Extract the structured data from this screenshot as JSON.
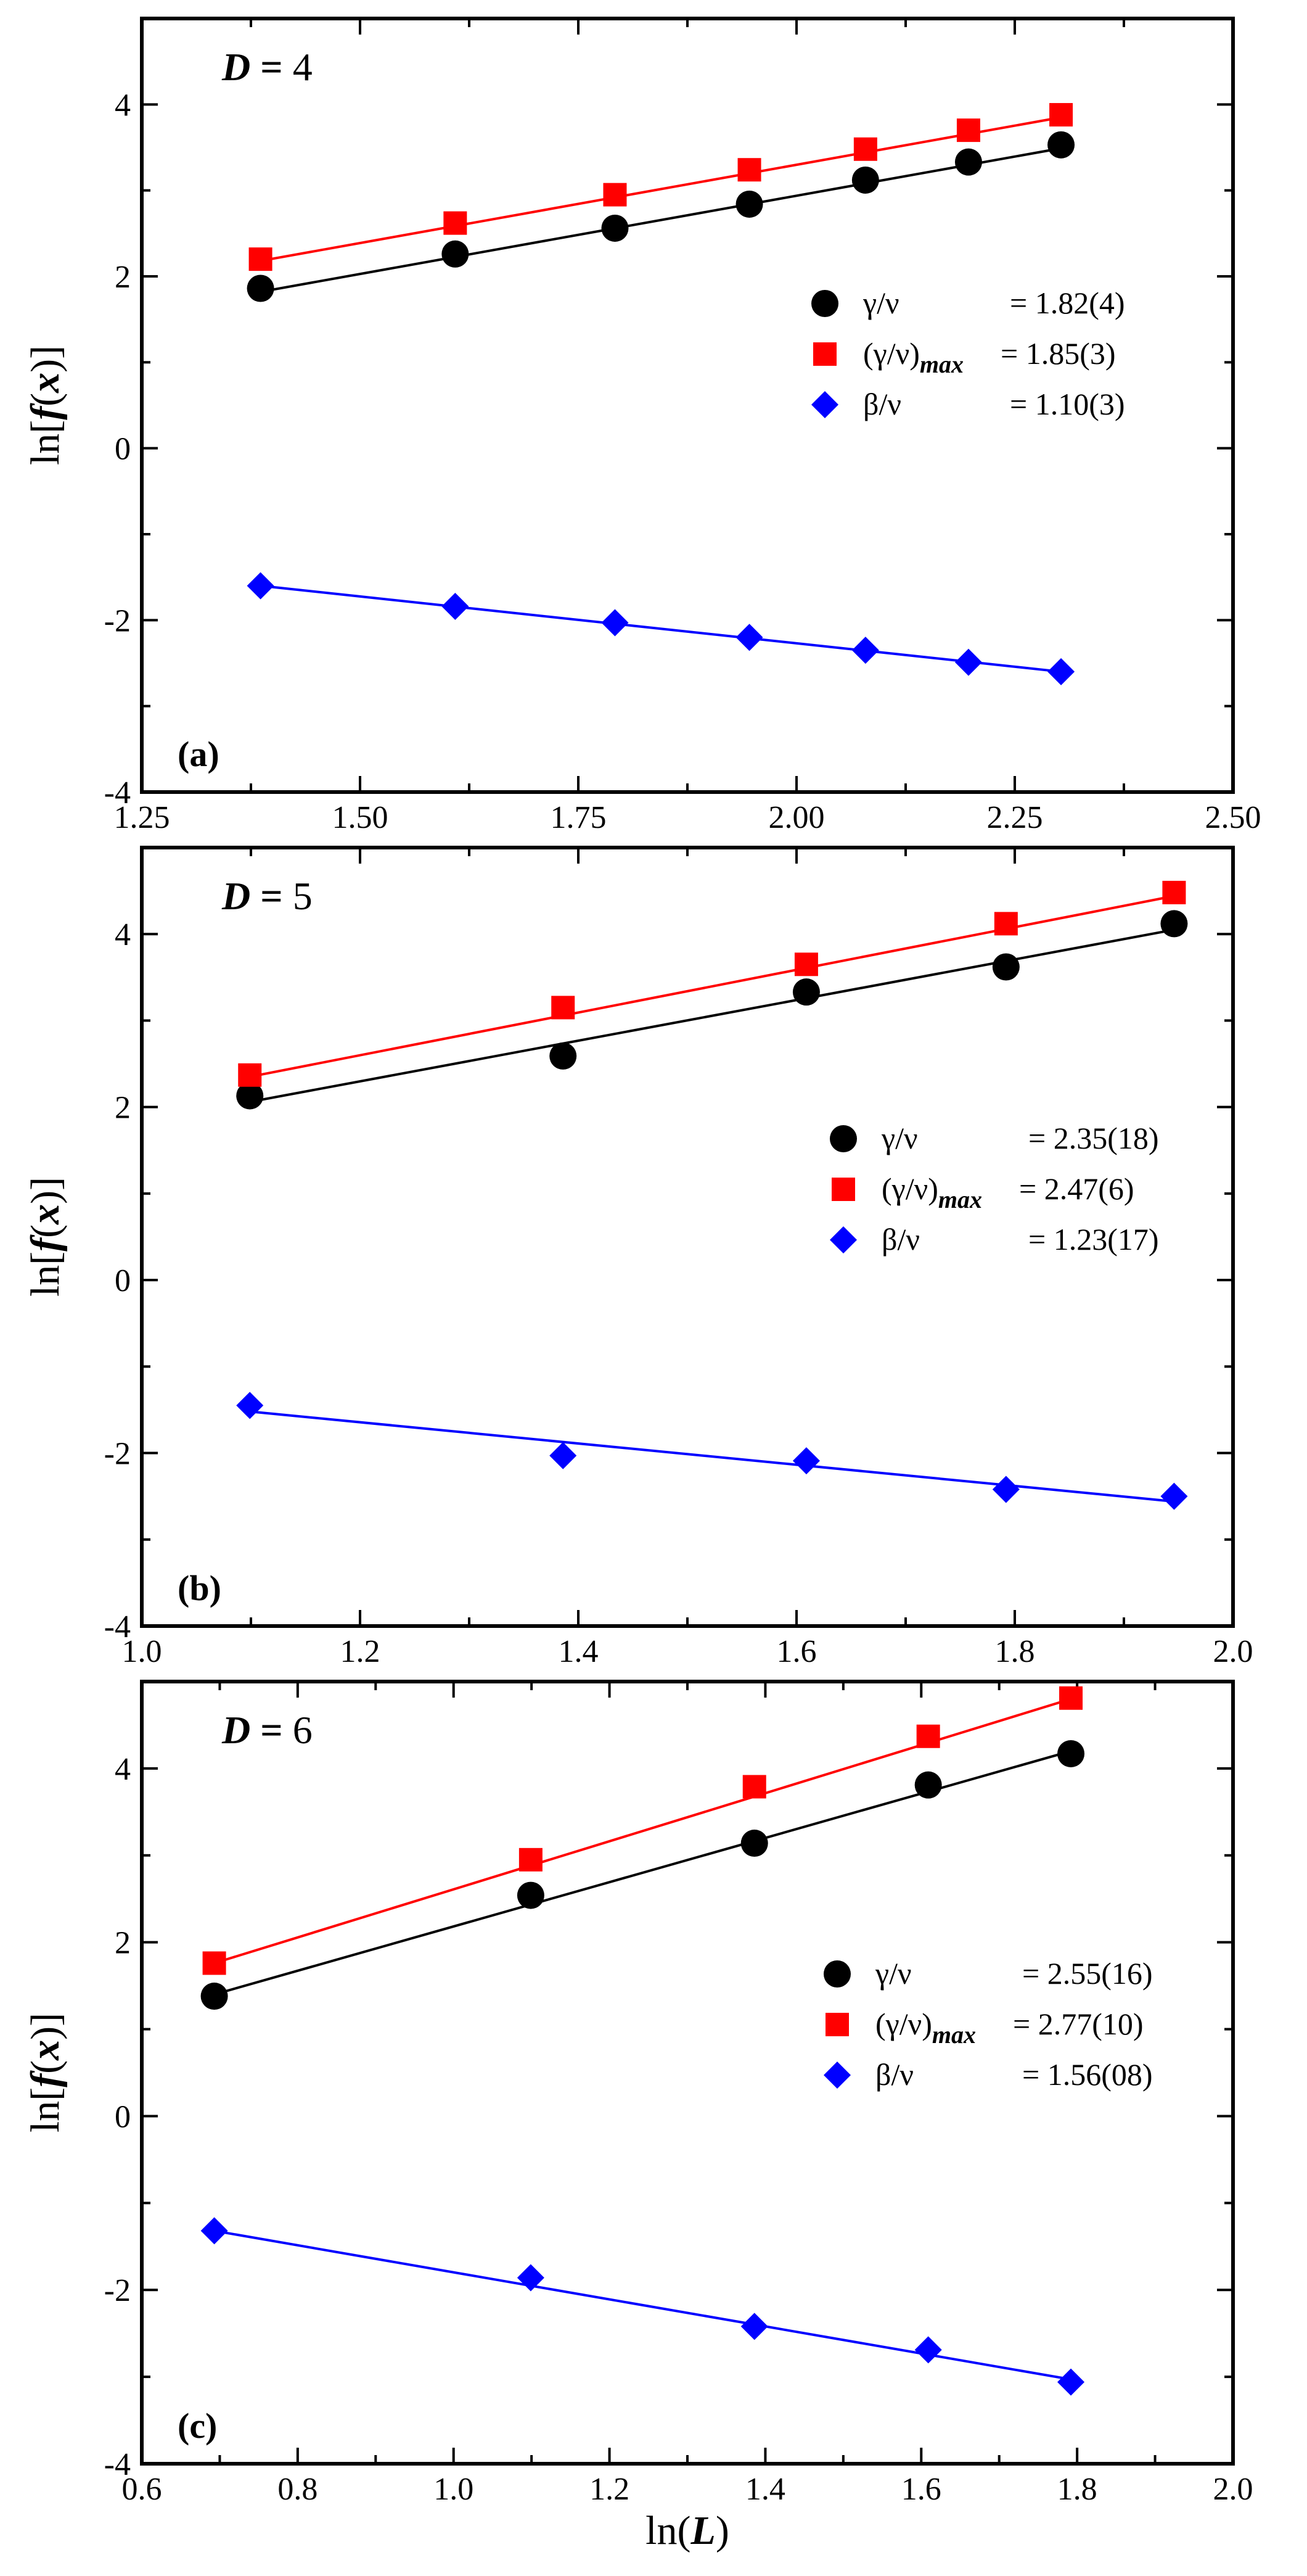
{
  "colors": {
    "gamma": "#000000",
    "gamma_max": "#ff0000",
    "beta": "#0000ff"
  },
  "chart_data": [
    {
      "type": "scatter",
      "panel_label": "(a)",
      "title": {
        "var": "D",
        "eq": " = ",
        "val": "4"
      },
      "ylabel": "ln[f(x)]",
      "xlabel": "",
      "xlim": [
        1.25,
        2.5
      ],
      "ylim": [
        -4,
        5
      ],
      "xticks": [
        1.25,
        1.5,
        1.75,
        2.0,
        2.25,
        2.5
      ],
      "xtick_labels": [
        "1.25",
        "1.50",
        "1.75",
        "2.00",
        "2.25",
        "2.50"
      ],
      "yticks": [
        -4,
        -2,
        0,
        2,
        4
      ],
      "ytick_labels": [
        "-4",
        "-2",
        "0",
        "2",
        "4"
      ],
      "x": [
        1.386,
        1.609,
        1.792,
        1.946,
        2.079,
        2.197,
        2.303
      ],
      "series": [
        {
          "key": "gamma",
          "marker": "circle",
          "values": [
            1.86,
            2.26,
            2.56,
            2.84,
            3.12,
            3.33,
            3.53
          ],
          "fit": [
            [
              1.386,
              1.82
            ],
            [
              2.303,
              3.49
            ]
          ],
          "legend_name": "γ/ν",
          "legend_sub": "",
          "legend_value": "= 1.82(4)"
        },
        {
          "key": "gamma_max",
          "marker": "square",
          "values": [
            2.2,
            2.62,
            2.95,
            3.24,
            3.48,
            3.7,
            3.88
          ],
          "fit": [
            [
              1.386,
              2.18
            ],
            [
              2.303,
              3.85
            ]
          ],
          "legend_name": "(γ/ν)",
          "legend_sub": "max",
          "legend_value": "= 1.85(3)"
        },
        {
          "key": "beta",
          "marker": "diamond",
          "values": [
            -1.6,
            -1.84,
            -2.03,
            -2.2,
            -2.35,
            -2.49,
            -2.6
          ],
          "fit": [
            [
              1.386,
              -1.6
            ],
            [
              2.303,
              -2.6
            ]
          ],
          "legend_name": "β/ν",
          "legend_sub": "",
          "legend_value": "= 1.10(3)"
        }
      ]
    },
    {
      "type": "scatter",
      "panel_label": "(b)",
      "title": {
        "var": "D",
        "eq": " = ",
        "val": "5"
      },
      "ylabel": "ln[f(x)]",
      "xlabel": "",
      "xlim": [
        1.0,
        2.0
      ],
      "ylim": [
        -4,
        5
      ],
      "xticks": [
        1.0,
        1.2,
        1.4,
        1.6,
        1.8,
        2.0
      ],
      "xtick_labels": [
        "1.0",
        "1.2",
        "1.4",
        "1.6",
        "1.8",
        "2.0"
      ],
      "yticks": [
        -4,
        -2,
        0,
        2,
        4
      ],
      "ytick_labels": [
        "-4",
        "-2",
        "0",
        "2",
        "4"
      ],
      "x": [
        1.099,
        1.386,
        1.609,
        1.792,
        1.946
      ],
      "series": [
        {
          "key": "gamma",
          "marker": "circle",
          "values": [
            2.13,
            2.59,
            3.33,
            3.62,
            4.12
          ],
          "fit": [
            [
              1.099,
              2.06
            ],
            [
              1.946,
              4.05
            ]
          ],
          "legend_name": "γ/ν",
          "legend_sub": "",
          "legend_value": "= 2.35(18)"
        },
        {
          "key": "gamma_max",
          "marker": "square",
          "values": [
            2.37,
            3.15,
            3.65,
            4.12,
            4.48
          ],
          "fit": [
            [
              1.099,
              2.35
            ],
            [
              1.946,
              4.44
            ]
          ],
          "legend_name": "(γ/ν)",
          "legend_sub": "max",
          "legend_value": "= 2.47(6)"
        },
        {
          "key": "beta",
          "marker": "diamond",
          "values": [
            -1.45,
            -2.03,
            -2.09,
            -2.42,
            -2.5
          ],
          "fit": [
            [
              1.099,
              -1.52
            ],
            [
              1.946,
              -2.56
            ]
          ],
          "legend_name": "β/ν",
          "legend_sub": "",
          "legend_value": "= 1.23(17)"
        }
      ]
    },
    {
      "type": "scatter",
      "panel_label": "(c)",
      "title": {
        "var": "D",
        "eq": " = ",
        "val": "6"
      },
      "ylabel": "ln[f(x)]",
      "xlabel": "ln(L)",
      "xlim": [
        0.6,
        2.0
      ],
      "ylim": [
        -4,
        5
      ],
      "xticks": [
        0.6,
        0.8,
        1.0,
        1.2,
        1.4,
        1.6,
        1.8,
        2.0
      ],
      "xtick_labels": [
        "0.6",
        "0.8",
        "1.0",
        "1.2",
        "1.4",
        "1.6",
        "1.8",
        "2.0"
      ],
      "yticks": [
        -4,
        -2,
        0,
        2,
        4
      ],
      "ytick_labels": [
        "-4",
        "-2",
        "0",
        "2",
        "4"
      ],
      "x": [
        0.693,
        1.099,
        1.386,
        1.609,
        1.792
      ],
      "series": [
        {
          "key": "gamma",
          "marker": "circle",
          "values": [
            1.38,
            2.54,
            3.14,
            3.81,
            4.17
          ],
          "fit": [
            [
              0.693,
              1.4
            ],
            [
              1.792,
              4.2
            ]
          ],
          "legend_name": "γ/ν",
          "legend_sub": "",
          "legend_value": "= 2.55(16)"
        },
        {
          "key": "gamma_max",
          "marker": "square",
          "values": [
            1.76,
            2.95,
            3.79,
            4.37,
            4.81
          ],
          "fit": [
            [
              0.693,
              1.76
            ],
            [
              1.792,
              4.8
            ]
          ],
          "legend_name": "(γ/ν)",
          "legend_sub": "max",
          "legend_value": "= 2.77(10)"
        },
        {
          "key": "beta",
          "marker": "diamond",
          "values": [
            -1.32,
            -1.86,
            -2.42,
            -2.69,
            -3.06
          ],
          "fit": [
            [
              0.693,
              -1.32
            ],
            [
              1.792,
              -3.03
            ]
          ],
          "legend_name": "β/ν",
          "legend_sub": "",
          "legend_value": "= 1.56(08)"
        }
      ]
    }
  ]
}
